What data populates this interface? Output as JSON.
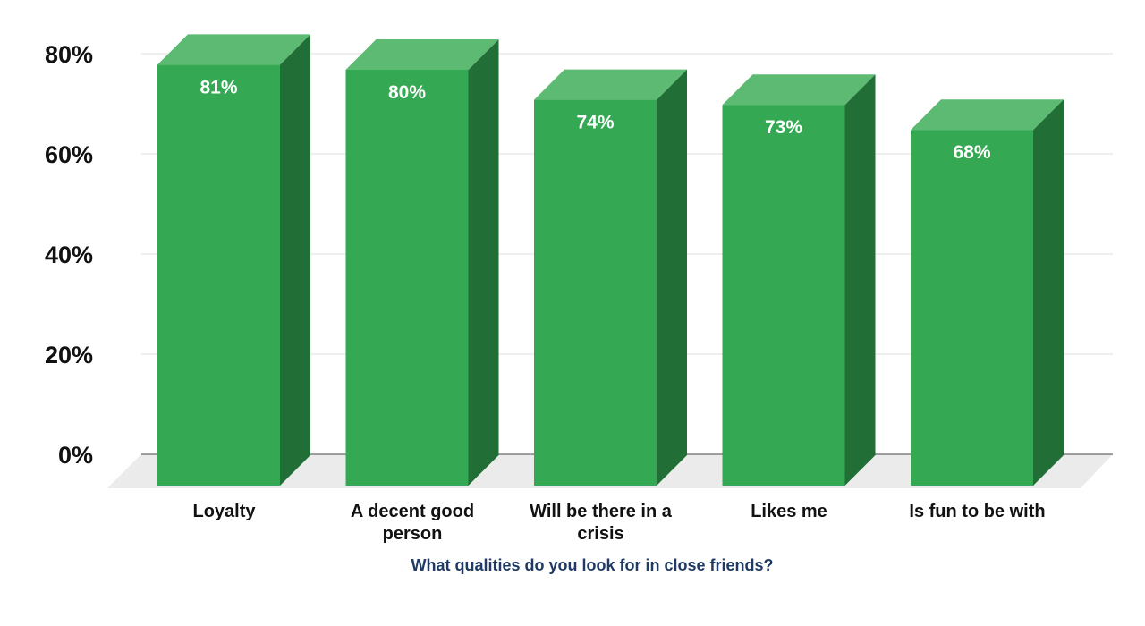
{
  "chart_data": {
    "type": "bar",
    "title": "",
    "xlabel": "What qualities do you look for in close friends?",
    "ylabel": "",
    "categories": [
      [
        "Loyalty"
      ],
      [
        "A decent good",
        "person"
      ],
      [
        "Will be there in a",
        "crisis"
      ],
      [
        "Likes me"
      ],
      [
        "Is fun to be with"
      ]
    ],
    "values": [
      81,
      80,
      74,
      73,
      68
    ],
    "data_labels": [
      "81%",
      "80%",
      "74%",
      "73%",
      "68%"
    ],
    "ylim": [
      0,
      80
    ],
    "yticks": [
      0,
      20,
      40,
      60,
      80
    ],
    "ytick_labels": [
      "0%",
      "20%",
      "40%",
      "60%",
      "80%"
    ],
    "grid": true,
    "legend": "none",
    "colors": {
      "bar_front": "#34a853",
      "bar_top": "#5dba72",
      "bar_side": "#216e36",
      "floor": "#ebebeb",
      "gridline": "#dddddd",
      "xlabel": "#1f3a64"
    }
  }
}
